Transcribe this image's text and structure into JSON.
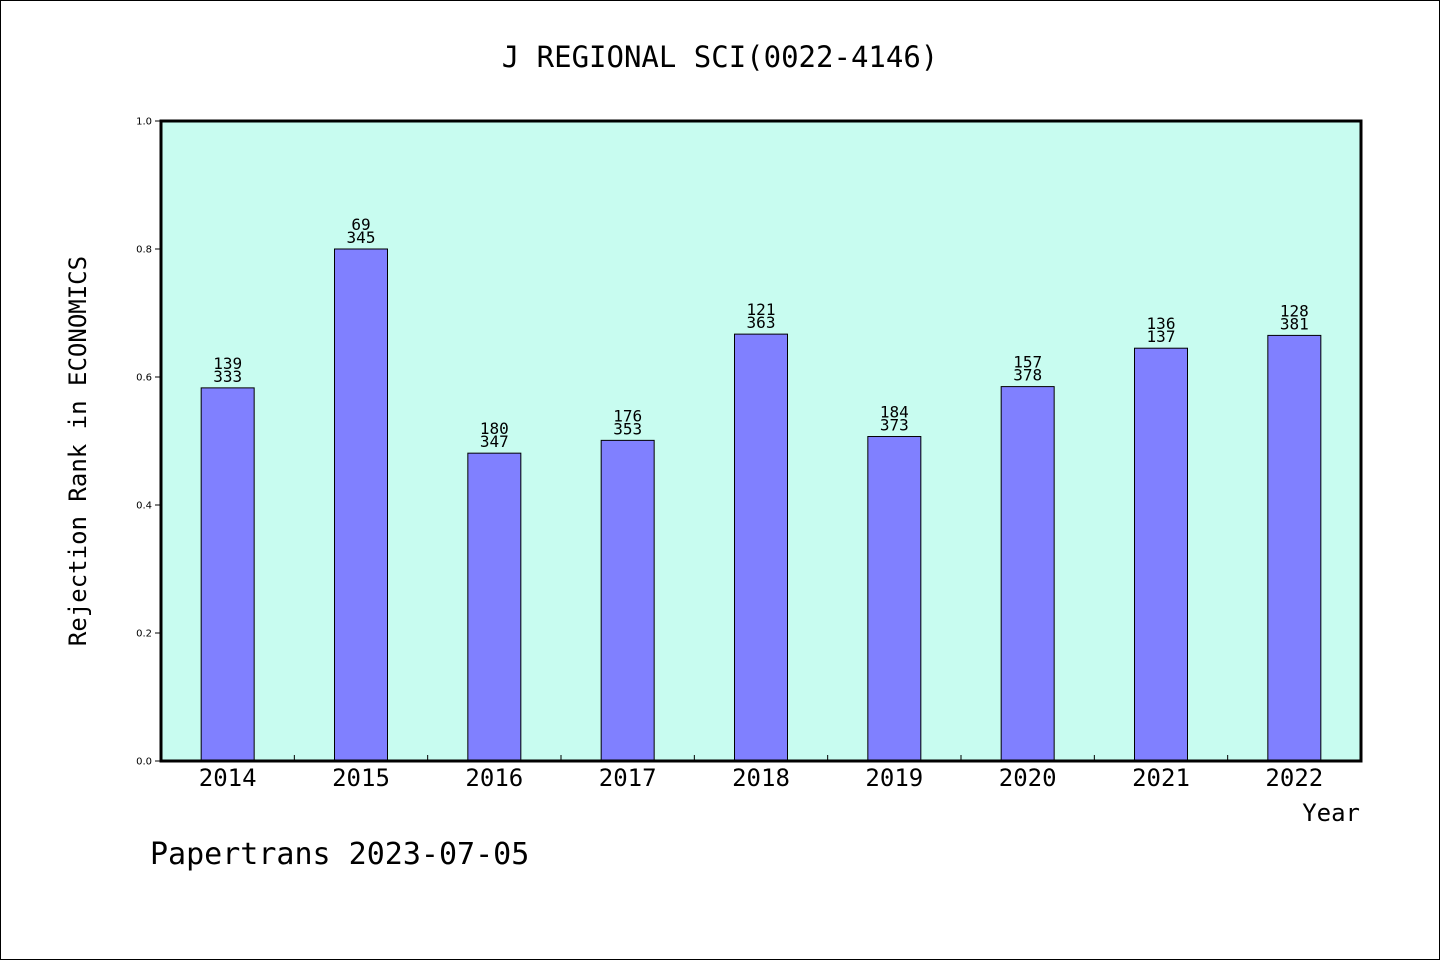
{
  "chart_data": {
    "type": "bar",
    "title": "J REGIONAL SCI(0022-4146)",
    "xlabel": "Year",
    "ylabel": "Rejection Rank in ECONOMICS",
    "ylim": [
      0,
      1.0
    ],
    "y_ticks": [
      "0.0",
      "0.2",
      "0.4",
      "0.6",
      "0.8",
      "1.0"
    ],
    "categories": [
      "2014",
      "2015",
      "2016",
      "2017",
      "2018",
      "2019",
      "2020",
      "2021",
      "2022"
    ],
    "values": [
      0.583,
      0.8,
      0.481,
      0.501,
      0.667,
      0.507,
      0.585,
      0.645,
      0.665
    ],
    "label_top": [
      "139",
      "69",
      "180",
      "176",
      "121",
      "184",
      "157",
      "136",
      "128"
    ],
    "label_bottom": [
      "333",
      "345",
      "347",
      "353",
      "363",
      "373",
      "378",
      "137",
      "381"
    ],
    "grid": false,
    "legend": "none",
    "colors": {
      "bar_fill": "#8080ff",
      "plot_background": "#c8fcf0",
      "bar_stroke": "#000000"
    }
  },
  "footer": {
    "note": "Papertrans 2023-07-05"
  }
}
